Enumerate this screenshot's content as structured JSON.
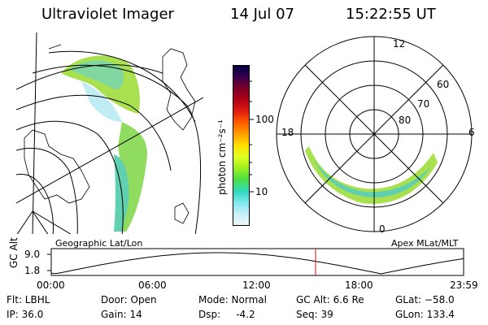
{
  "header": {
    "instrument": "Ultraviolet Imager",
    "date": "14 Jul 07",
    "time": "15:22:55 UT"
  },
  "colorbar": {
    "unit_label": "photon cm⁻²s⁻¹",
    "ticks": [
      "100",
      "10"
    ],
    "colors": [
      "#000040",
      "#3a0050",
      "#780028",
      "#b00018",
      "#e02010",
      "#ff6000",
      "#ffa000",
      "#ffe000",
      "#e0ff20",
      "#a0f020",
      "#50e040",
      "#30d8c0",
      "#80e8f0",
      "#c8f0f8",
      "#eef6f8"
    ]
  },
  "geographic_map": {
    "label": "Geographic Lat/Lon"
  },
  "polar_plot": {
    "label": "Apex MLat/MLT",
    "mlt_labels": [
      "12",
      "18",
      "6",
      "0"
    ],
    "lat_labels": [
      "60",
      "70",
      "80"
    ]
  },
  "altitude_plot": {
    "ylabel": "GC Alt",
    "y_ticks": [
      "9.0",
      "1.8"
    ],
    "x_ticks": [
      "00:00",
      "06:00",
      "12:00",
      "18:00",
      "23:59"
    ],
    "current_time_fraction": 0.641,
    "marker_color": "#ff0000"
  },
  "info": {
    "col1": [
      "Flt: LBHL",
      "IP: 36.0"
    ],
    "col2": [
      "Door: Open",
      "Gain: 14"
    ],
    "col3": [
      "Mode: Normal",
      "Dsp:     -4.2"
    ],
    "col4": [
      "GC Alt: 6.6 Re",
      "Seq: 39"
    ],
    "col5": [
      "GLat: −58.0",
      "GLon: 133.4"
    ]
  }
}
